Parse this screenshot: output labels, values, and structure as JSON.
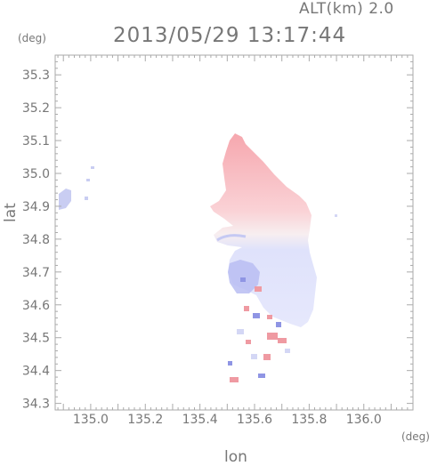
{
  "header": {
    "altitude_label": "ALT(km) 2.0",
    "timestamp": "2013/05/29 13:17:44"
  },
  "axes": {
    "x_label": "lon",
    "y_label": "lat",
    "x_unit": "(deg)",
    "y_unit": "(deg)",
    "x_range": [
      134.87,
      136.18
    ],
    "y_range": [
      34.28,
      35.36
    ],
    "x_ticks": [
      "135.0",
      "135.2",
      "135.4",
      "135.6",
      "135.8",
      "136.0"
    ],
    "y_ticks": [
      "34.3",
      "34.4",
      "34.5",
      "34.6",
      "34.7",
      "34.8",
      "34.9",
      "35.0",
      "35.1",
      "35.2",
      "35.3"
    ]
  },
  "colors": {
    "frame": "#aaaaaa",
    "tick_text": "#777777",
    "approaching": "#c7cdf4",
    "receding": "#f5b4b8"
  }
}
